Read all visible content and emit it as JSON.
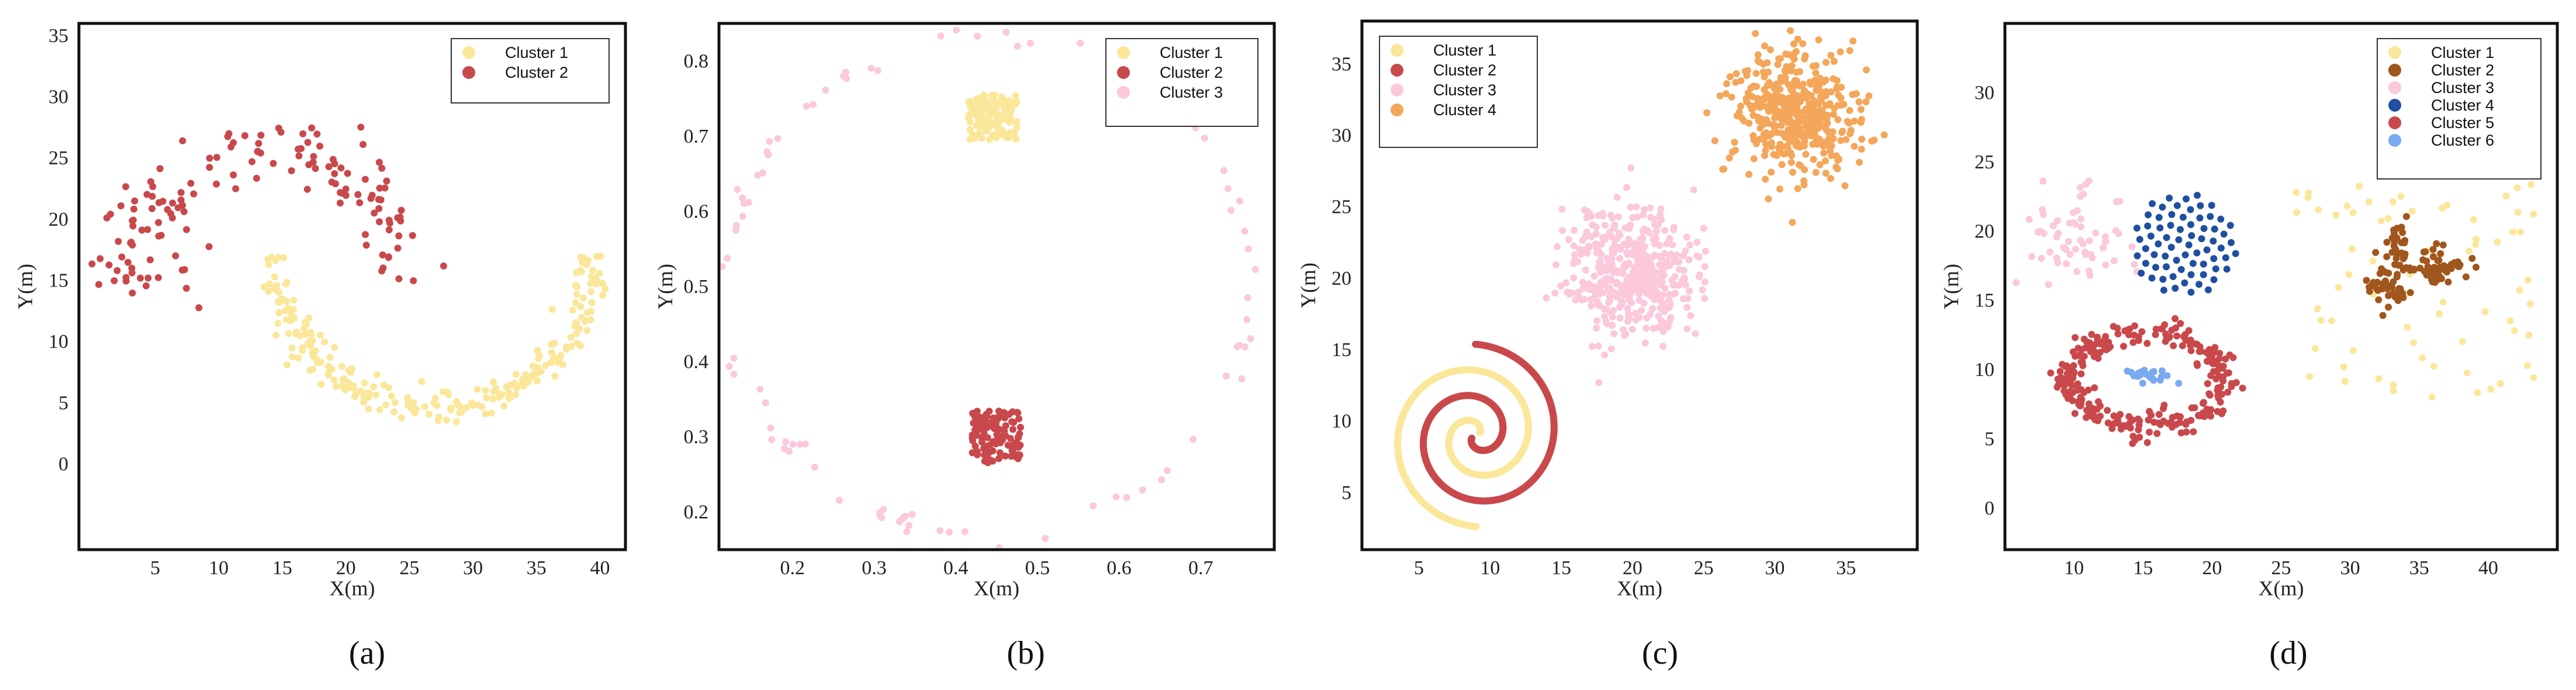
{
  "chart_data": [
    {
      "type": "scatter",
      "caption": "(a)",
      "xlabel": "X(m)",
      "ylabel": "Y(m)",
      "xlim": [
        -1,
        42
      ],
      "ylim": [
        -7,
        36
      ],
      "xticks": [
        5,
        10,
        15,
        20,
        25,
        30,
        35,
        40
      ],
      "yticks": [
        0,
        5,
        10,
        15,
        20,
        25,
        30,
        35
      ],
      "grid": false,
      "legend_position": "top-right",
      "series": [
        {
          "name": "Cluster 1",
          "color": "#fbe79a",
          "generators": [
            {
              "kind": "arc",
              "cx": 27,
              "cy": 17,
              "r": 12.5,
              "a0": 200,
              "a1": 360,
              "spread": 1.3,
              "n": 220
            },
            {
              "kind": "arc",
              "cx": 27,
              "cy": 17,
              "r": 12.5,
              "a0": 180,
              "a1": 205,
              "spread": 1.0,
              "n": 25
            }
          ]
        },
        {
          "name": "Cluster 2",
          "color": "#c9484b",
          "generators": [
            {
              "kind": "arc",
              "cx": 14,
              "cy": 14.5,
              "r": 11,
              "a0": 0,
              "a1": 180,
              "spread": 2.6,
              "n": 120
            },
            {
              "kind": "gauss",
              "cx": 4.5,
              "cy": 18,
              "sx": 2.2,
              "sy": 3,
              "n": 30
            }
          ]
        }
      ]
    },
    {
      "type": "scatter",
      "caption": "(b)",
      "xlabel": "X(m)",
      "ylabel": "Y(m)",
      "xlim": [
        0.11,
        0.79
      ],
      "ylim": [
        0.15,
        0.85
      ],
      "xticks": [
        0.2,
        0.3,
        0.4,
        0.5,
        0.6,
        0.7
      ],
      "yticks": [
        0.2,
        0.3,
        0.4,
        0.5,
        0.6,
        0.7,
        0.8
      ],
      "grid": false,
      "legend_position": "top-right",
      "series": [
        {
          "name": "Cluster 1",
          "color": "#fbe79a",
          "generators": [
            {
              "kind": "box",
              "x0": 0.415,
              "x1": 0.475,
              "y0": 0.695,
              "y1": 0.755,
              "n": 120
            }
          ]
        },
        {
          "name": "Cluster 2",
          "color": "#c9484b",
          "generators": [
            {
              "kind": "box",
              "x0": 0.42,
              "x1": 0.48,
              "y0": 0.265,
              "y1": 0.335,
              "n": 120
            }
          ]
        },
        {
          "name": "Cluster 3",
          "color": "#fbc8dc",
          "generators": [
            {
              "kind": "ring",
              "cx": 0.44,
              "cy": 0.5,
              "rx": 0.32,
              "ry": 0.33,
              "spread": 0.008,
              "n": 90
            }
          ]
        }
      ]
    },
    {
      "type": "scatter",
      "caption": "(c)",
      "xlabel": "X(m)",
      "ylabel": "Y(m)",
      "xlim": [
        1,
        40
      ],
      "ylim": [
        1,
        38
      ],
      "xticks": [
        5,
        10,
        15,
        20,
        25,
        30,
        35
      ],
      "yticks": [
        5,
        10,
        15,
        20,
        25,
        30,
        35
      ],
      "grid": false,
      "legend_position": "top-left",
      "series": [
        {
          "name": "Cluster 1",
          "color": "#fbe79a",
          "generators": [
            {
              "kind": "spiral",
              "cx": 9,
              "cy": 9,
              "t0": 0.6,
              "t1": 11.0,
              "k": 0.58,
              "phase": 0,
              "n": 700
            }
          ]
        },
        {
          "name": "Cluster 2",
          "color": "#c9484b",
          "generators": [
            {
              "kind": "spiral",
              "cx": 9,
              "cy": 9,
              "t0": 0.6,
              "t1": 11.0,
              "k": 0.58,
              "phase": 3.14159,
              "n": 700
            }
          ]
        },
        {
          "name": "Cluster 3",
          "color": "#fbc8dc",
          "generators": [
            {
              "kind": "gauss",
              "cx": 20,
              "cy": 20.3,
              "sx": 2.3,
              "sy": 2.3,
              "n": 450
            }
          ]
        },
        {
          "name": "Cluster 4",
          "color": "#f4a65a",
          "generators": [
            {
              "kind": "gauss",
              "cx": 31.5,
              "cy": 31.5,
              "sx": 2.2,
              "sy": 2.2,
              "n": 450
            }
          ]
        }
      ]
    },
    {
      "type": "scatter",
      "caption": "(d)",
      "xlabel": "X(m)",
      "ylabel": "Y(m)",
      "xlim": [
        5,
        45
      ],
      "ylim": [
        -3,
        35
      ],
      "xticks": [
        10,
        15,
        20,
        25,
        30,
        35,
        40
      ],
      "yticks": [
        0,
        5,
        10,
        15,
        20,
        25,
        30
      ],
      "grid": false,
      "legend_position": "top-right",
      "series": [
        {
          "name": "Cluster 1",
          "color": "#fbe79a",
          "generators": [
            {
              "kind": "box",
              "x0": 26,
              "x1": 43.5,
              "y0": 8,
              "y1": 24.5,
              "n": 75
            }
          ]
        },
        {
          "name": "Cluster 2",
          "color": "#a0561c",
          "generators": [
            {
              "kind": "gauss",
              "cx": 32.5,
              "cy": 16,
              "sx": 0.9,
              "sy": 0.9,
              "n": 45
            },
            {
              "kind": "gauss",
              "cx": 33.6,
              "cy": 19,
              "sx": 0.5,
              "sy": 0.8,
              "n": 25
            },
            {
              "kind": "gauss",
              "cx": 36.2,
              "cy": 17.5,
              "sx": 1.3,
              "sy": 0.6,
              "n": 55
            }
          ]
        },
        {
          "name": "Cluster 3",
          "color": "#fbc8dc",
          "generators": [
            {
              "kind": "gauss",
              "cx": 10,
              "cy": 19.5,
              "sx": 1.8,
              "sy": 1.7,
              "n": 60
            }
          ]
        },
        {
          "name": "Cluster 4",
          "color": "#1f4fa0",
          "generators": [
            {
              "kind": "sunflower",
              "cx": 18,
              "cy": 19,
              "r": 3.8,
              "n": 70
            }
          ]
        },
        {
          "name": "Cluster 5",
          "color": "#c9484b",
          "generators": [
            {
              "kind": "ring",
              "cx": 15.2,
              "cy": 9.3,
              "rx": 5.6,
              "ry": 3.4,
              "spread": 0.55,
              "n": 270
            }
          ]
        },
        {
          "name": "Cluster 6",
          "color": "#79a9ef",
          "generators": [
            {
              "kind": "gauss",
              "cx": 15.5,
              "cy": 9.5,
              "sx": 0.9,
              "sy": 0.3,
              "n": 25
            }
          ]
        }
      ]
    }
  ]
}
